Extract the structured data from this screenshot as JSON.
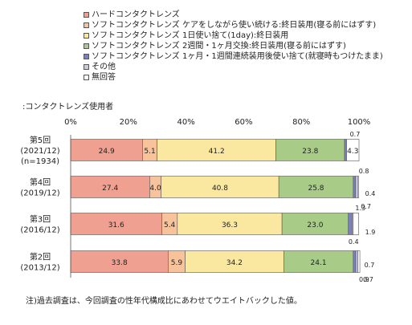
{
  "chart_data": {
    "type": "bar",
    "orientation": "horizontal",
    "stacked": true,
    "subtitle": ":コンタクトレンズ使用者",
    "note": "注)過去調査は、今回調査の性年代構成比にあわせてウエイトバックした値。",
    "xlim": [
      0,
      100
    ],
    "x_ticks": [
      "0%",
      "20%",
      "40%",
      "60%",
      "80%",
      "100%"
    ],
    "grid": false,
    "legend_position": "top",
    "categories": [
      {
        "line1": "第5回",
        "line2": "(2021/12)",
        "line3": "(n=1934)"
      },
      {
        "line1": "第4回",
        "line2": "(2019/12)",
        "line3": ""
      },
      {
        "line1": "第3回",
        "line2": "(2016/12)",
        "line3": ""
      },
      {
        "line1": "第2回",
        "line2": "(2013/12)",
        "line3": ""
      }
    ],
    "series": [
      {
        "name": "ハードコンタクトレンズ",
        "color": "#f0a090",
        "values": [
          24.9,
          27.4,
          31.6,
          33.8
        ]
      },
      {
        "name": "ソフトコンタクトレンズ ケアをしながら使い続ける:終日装用(寝る前にはずす)",
        "color": "#f8c39a",
        "values": [
          5.1,
          4.0,
          5.4,
          5.9
        ]
      },
      {
        "name": "ソフトコンタクトレンズ 1日使い捨て(1day):終日装用",
        "color": "#fbe8a0",
        "values": [
          41.2,
          40.8,
          36.3,
          34.2
        ]
      },
      {
        "name": "ソフトコンタクトレンズ 2週間・1ヶ月交換:終日装用(寝る前にはずす)",
        "color": "#a8cc88",
        "values": [
          23.8,
          25.8,
          23.0,
          24.1
        ]
      },
      {
        "name": "ソフトコンタクトレンズ 1ヶ月・1週間連続装用後使い捨て(就寝時もつけたまま)",
        "color": "#7e80bc",
        "values": [
          0.7,
          0.8,
          1.3,
          0.9
        ]
      },
      {
        "name": "その他",
        "color": "#c9c9ea",
        "values": [
          0.0,
          0.7,
          0.4,
          0.7
        ]
      },
      {
        "name": "無回答",
        "color": "#ffffff",
        "values": [
          4.3,
          0.4,
          1.9,
          0.7
        ]
      }
    ]
  }
}
